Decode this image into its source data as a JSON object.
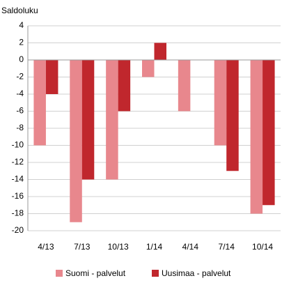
{
  "chart_data": {
    "type": "bar",
    "y_axis_label": "Saldoluku",
    "categories": [
      "4/13",
      "7/13",
      "10/13",
      "1/14",
      "4/14",
      "7/14",
      "10/14"
    ],
    "series": [
      {
        "name": "Suomi - palvelut",
        "color": "#e8878d",
        "values": [
          -10,
          -19,
          -14,
          -2,
          -6,
          -10,
          -18
        ]
      },
      {
        "name": "Uusimaa - palvelut",
        "color": "#c0272d",
        "values": [
          -4,
          -14,
          -6,
          2,
          0,
          -13,
          -17
        ]
      }
    ],
    "ylim": [
      -20,
      4
    ],
    "yticks": [
      4,
      2,
      0,
      -2,
      -4,
      -6,
      -8,
      -10,
      -12,
      -14,
      -16,
      -18,
      -20
    ],
    "grid": true
  }
}
